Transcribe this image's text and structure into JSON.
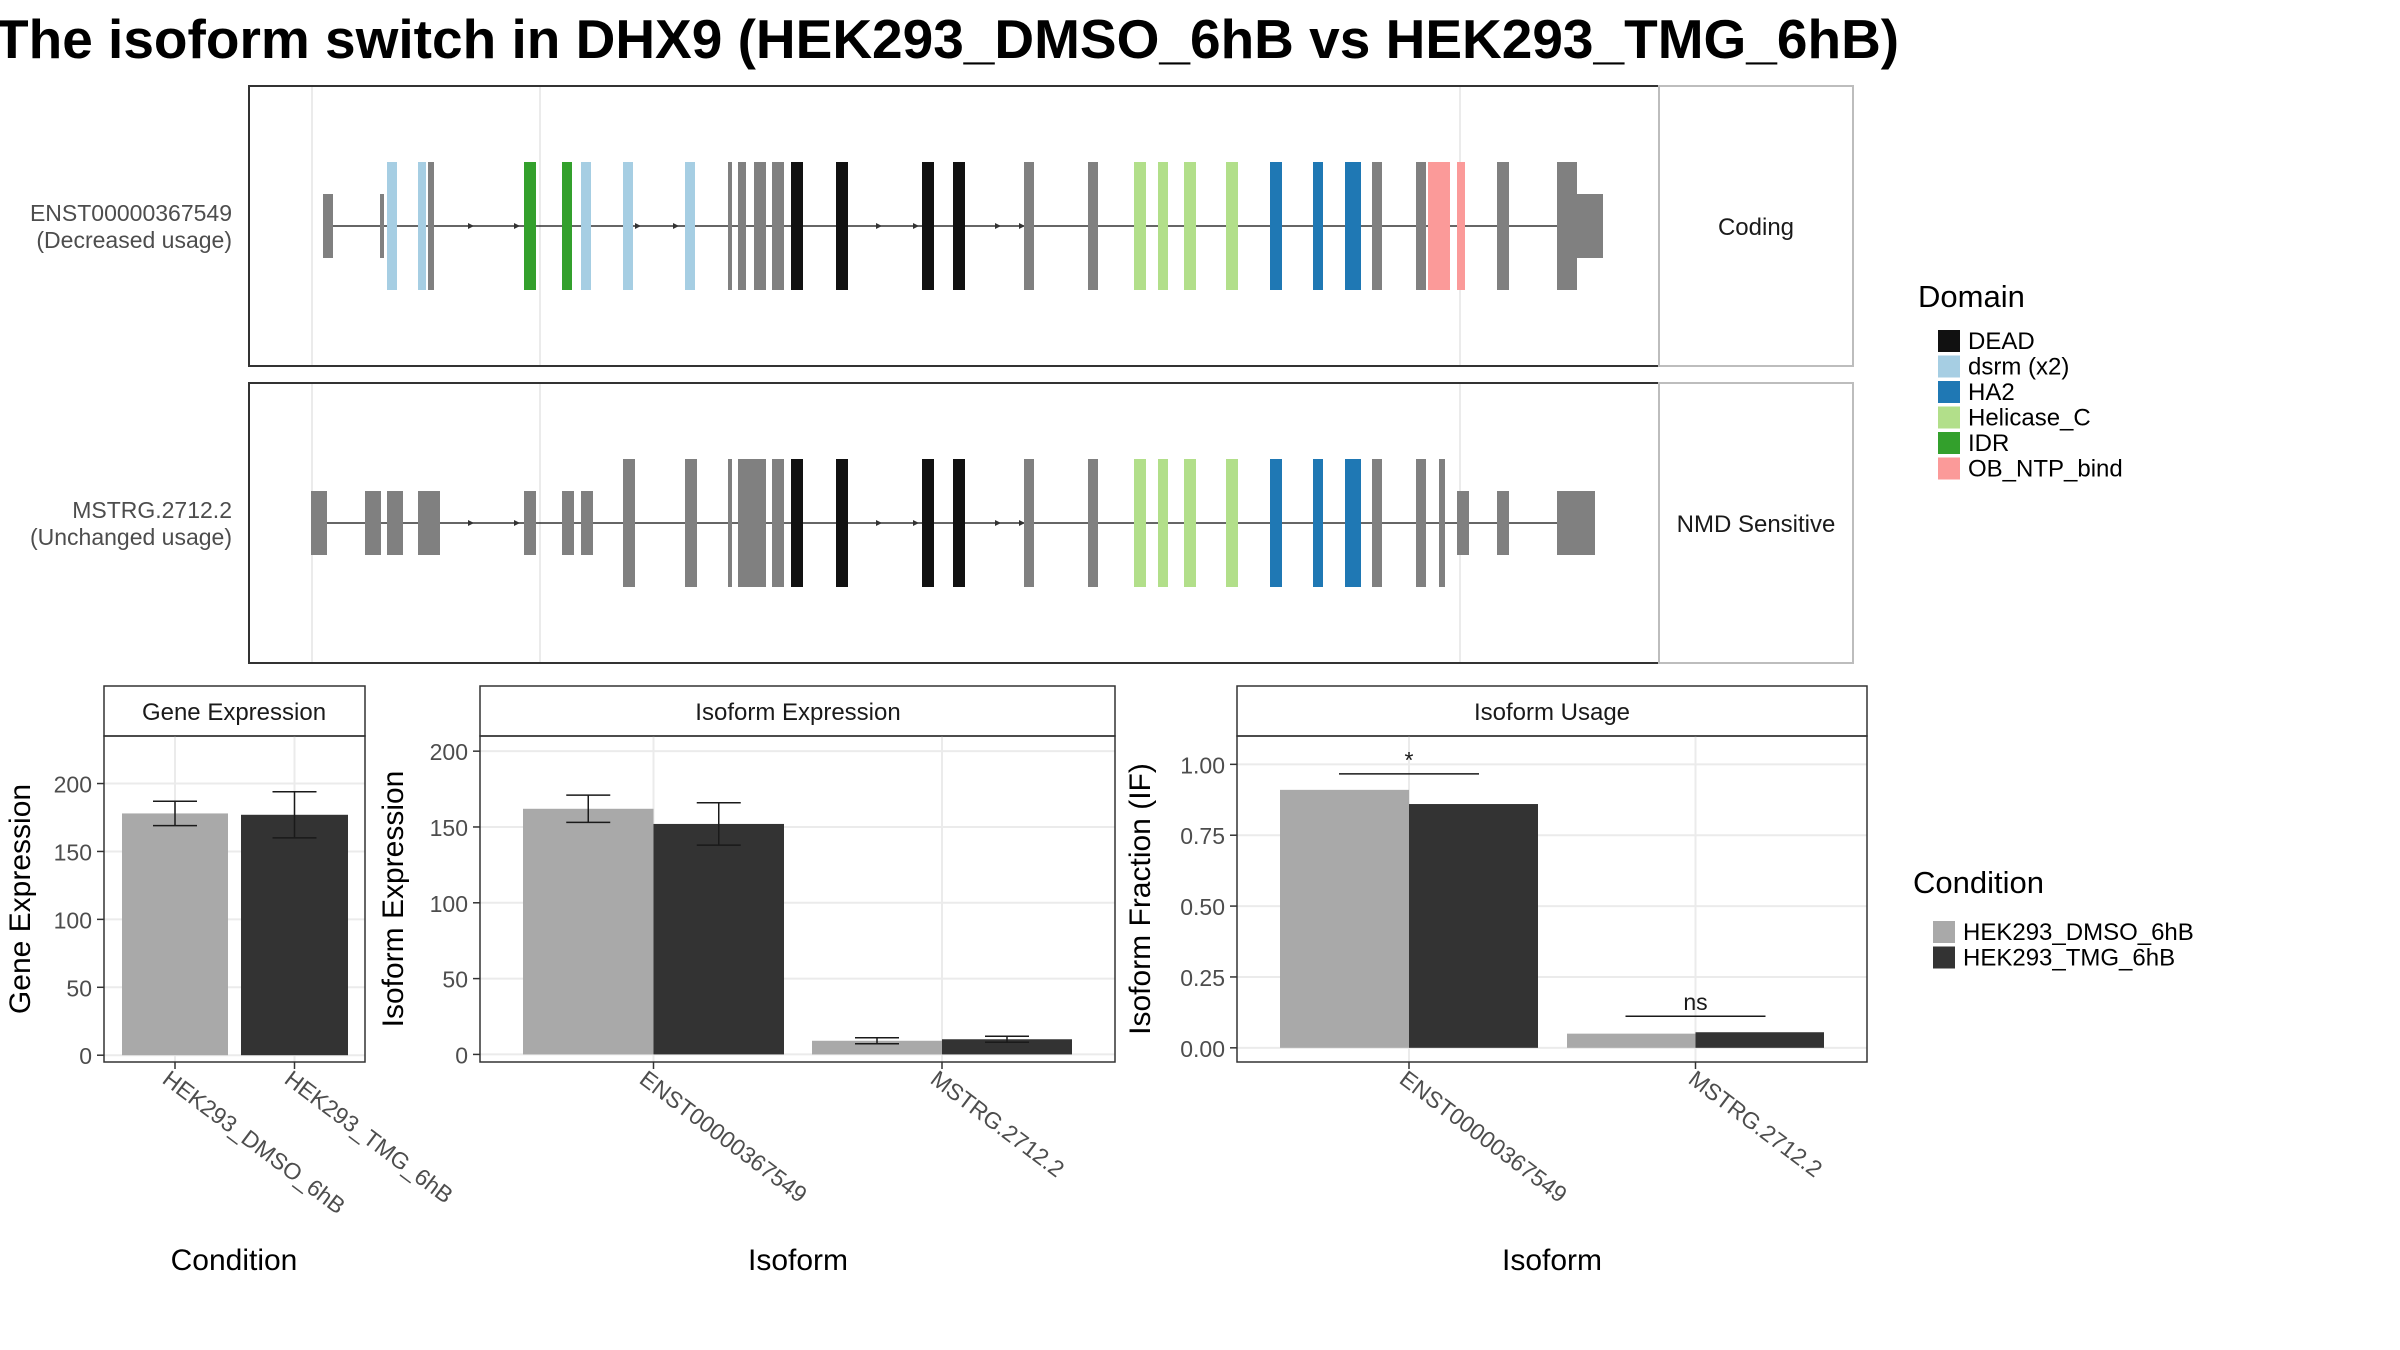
{
  "title": "The isoform switch in DHX9 (HEK293_DMSO_6hB vs HEK293_TMG_6hB)",
  "colors": {
    "intron": "#333333",
    "exon_plain": "#808080",
    "condition_dmso": "#A9A9A9",
    "condition_tmg": "#333333",
    "panel_border": "#333333",
    "strip_border": "#bdbdbd",
    "grid": "#ebebeb"
  },
  "domain_legend": {
    "title": "Domain",
    "items": [
      {
        "label": "DEAD",
        "color": "#111111"
      },
      {
        "label": "dsrm (x2)",
        "color": "#a6cee3"
      },
      {
        "label": "HA2",
        "color": "#1f78b4"
      },
      {
        "label": "Helicase_C",
        "color": "#b2df8a"
      },
      {
        "label": "IDR",
        "color": "#33a02c"
      },
      {
        "label": "OB_NTP_bind",
        "color": "#fb9a99"
      }
    ]
  },
  "condition_legend": {
    "title": "Condition",
    "items": [
      {
        "label": "HEK293_DMSO_6hB",
        "color": "#A9A9A9"
      },
      {
        "label": "HEK293_TMG_6hB",
        "color": "#333333"
      }
    ]
  },
  "transcripts": [
    {
      "name": "ENST00000367549",
      "usage": "(Decreased usage)",
      "category": "Coding",
      "exons": [
        {
          "d": "",
          "c": false
        },
        {
          "d": "",
          "c": false
        },
        {
          "d": "dsrm (x2)",
          "c": true
        },
        {
          "d": "dsrm (x2)",
          "c": true
        },
        {
          "d": "",
          "c": true
        },
        {
          "d": "IDR",
          "c": true
        },
        {
          "d": "IDR",
          "c": true
        },
        {
          "d": "dsrm (x2)",
          "c": true
        },
        {
          "d": "dsrm (x2)",
          "c": true
        },
        {
          "d": "dsrm (x2)",
          "c": true
        },
        {
          "d": "",
          "c": true
        },
        {
          "d": "",
          "c": true
        },
        {
          "d": "",
          "c": true
        },
        {
          "d": "",
          "c": true
        },
        {
          "d": "DEAD",
          "c": true
        },
        {
          "d": "DEAD",
          "c": true
        },
        {
          "d": "DEAD",
          "c": true
        },
        {
          "d": "DEAD",
          "c": true
        },
        {
          "d": "",
          "c": true
        },
        {
          "d": "",
          "c": true
        },
        {
          "d": "Helicase_C",
          "c": true
        },
        {
          "d": "Helicase_C",
          "c": true
        },
        {
          "d": "Helicase_C",
          "c": true
        },
        {
          "d": "Helicase_C",
          "c": true
        },
        {
          "d": "HA2",
          "c": true
        },
        {
          "d": "HA2",
          "c": true
        },
        {
          "d": "HA2",
          "c": true
        },
        {
          "d": "",
          "c": true
        },
        {
          "d": "",
          "c": true
        },
        {
          "d": "OB_NTP_bind",
          "c": true
        },
        {
          "d": "OB_NTP_bind",
          "c": true
        },
        {
          "d": "",
          "c": true
        },
        {
          "d": "",
          "c": true
        },
        {
          "d": "",
          "c": false
        }
      ]
    },
    {
      "name": "MSTRG.2712.2",
      "usage": "(Unchanged usage)",
      "category": "NMD Sensitive",
      "exons": [
        {
          "d": "",
          "c": false
        },
        {
          "d": "",
          "c": false
        },
        {
          "d": "",
          "c": false
        },
        {
          "d": "",
          "c": false
        },
        {
          "d": "",
          "c": false
        },
        {
          "d": "",
          "c": false
        },
        {
          "d": "",
          "c": false
        },
        {
          "d": "",
          "c": false
        },
        {
          "d": "",
          "c": true
        },
        {
          "d": "",
          "c": true
        },
        {
          "d": "",
          "c": true
        },
        {
          "d": "",
          "c": true
        },
        {
          "d": "",
          "c": true
        },
        {
          "d": "",
          "c": true
        },
        {
          "d": "DEAD",
          "c": true
        },
        {
          "d": "DEAD",
          "c": true
        },
        {
          "d": "DEAD",
          "c": true
        },
        {
          "d": "DEAD",
          "c": true
        },
        {
          "d": "",
          "c": true
        },
        {
          "d": "",
          "c": true
        },
        {
          "d": "Helicase_C",
          "c": true
        },
        {
          "d": "Helicase_C",
          "c": true
        },
        {
          "d": "Helicase_C",
          "c": true
        },
        {
          "d": "Helicase_C",
          "c": true
        },
        {
          "d": "HA2",
          "c": true
        },
        {
          "d": "HA2",
          "c": true
        },
        {
          "d": "HA2",
          "c": true
        },
        {
          "d": "",
          "c": true
        },
        {
          "d": "",
          "c": true
        },
        {
          "d": "",
          "c": true
        },
        {
          "d": "",
          "c": false
        },
        {
          "d": "",
          "c": false
        },
        {
          "d": "",
          "c": false
        }
      ]
    }
  ],
  "chart_data": [
    {
      "type": "bar",
      "title": "Gene Expression",
      "xlabel": "Condition",
      "ylabel": "Gene Expression",
      "categories": [
        "HEK293_DMSO_6hB",
        "HEK293_TMG_6hB"
      ],
      "values": [
        178,
        177
      ],
      "errors": [
        [
          169,
          187
        ],
        [
          160,
          194
        ]
      ],
      "ylim": [
        -5,
        235
      ],
      "yticks": [
        "0",
        "50",
        "100",
        "150",
        "200"
      ],
      "grid": true
    },
    {
      "type": "bar",
      "title": "Isoform Expression",
      "xlabel": "Isoform",
      "ylabel": "Isoform Expression",
      "categories": [
        "ENST00000367549",
        "MSTRG.2712.2"
      ],
      "series": [
        {
          "name": "HEK293_DMSO_6hB",
          "values": [
            162,
            9
          ],
          "errors": [
            [
              153,
              171
            ],
            [
              7,
              11
            ]
          ]
        },
        {
          "name": "HEK293_TMG_6hB",
          "values": [
            152,
            10
          ],
          "errors": [
            [
              138,
              166
            ],
            [
              8,
              12
            ]
          ]
        }
      ],
      "ylim": [
        -5,
        210
      ],
      "yticks": [
        "0",
        "50",
        "100",
        "150",
        "200"
      ],
      "grid": true
    },
    {
      "type": "bar",
      "title": "Isoform Usage",
      "xlabel": "Isoform",
      "ylabel": "Isoform Fraction (IF)",
      "categories": [
        "ENST00000367549",
        "MSTRG.2712.2"
      ],
      "series": [
        {
          "name": "HEK293_DMSO_6hB",
          "values": [
            0.91,
            0.05
          ]
        },
        {
          "name": "HEK293_TMG_6hB",
          "values": [
            0.86,
            0.055
          ]
        }
      ],
      "significance": [
        "*",
        "ns"
      ],
      "ylim": [
        -0.05,
        1.1
      ],
      "yticks": [
        "0.00",
        "0.25",
        "0.50",
        "0.75",
        "1.00"
      ],
      "grid": true
    }
  ]
}
